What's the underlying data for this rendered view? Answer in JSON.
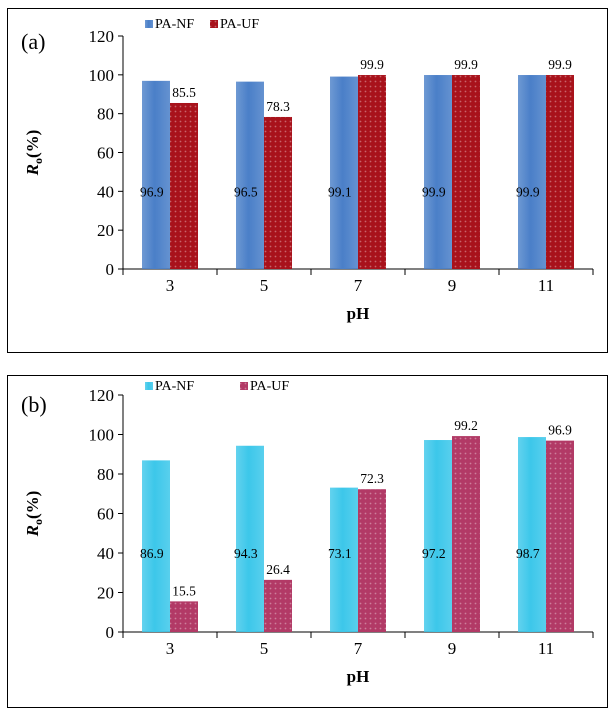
{
  "chart_data": [
    {
      "type": "bar",
      "panel_label": "(a)",
      "xlabel": "pH",
      "ylabel": "R",
      "ylabel_sub": "o",
      "ylabel_suffix": "(%)",
      "ylim": [
        0,
        120
      ],
      "yticks": [
        "0",
        "20",
        "40",
        "60",
        "80",
        "100",
        "120"
      ],
      "categories": [
        "3",
        "5",
        "7",
        "9",
        "11"
      ],
      "legend_position": "top-left",
      "series": [
        {
          "name": "PA-NF",
          "values": [
            96.9,
            96.5,
            99.1,
            99.9,
            99.9
          ],
          "labels": [
            "96.9",
            "96.5",
            "99.1",
            "99.9",
            "99.9"
          ],
          "color": "#4a7fc8",
          "label_position": "inside"
        },
        {
          "name": "PA-UF",
          "values": [
            85.5,
            78.3,
            99.9,
            99.9,
            99.9
          ],
          "labels": [
            "85.5",
            "78.3",
            "99.9",
            "99.9",
            "99.9"
          ],
          "color": "#a8121b",
          "label_position": "above"
        }
      ]
    },
    {
      "type": "bar",
      "panel_label": "(b)",
      "xlabel": "pH",
      "ylabel": "R",
      "ylabel_sub": "o",
      "ylabel_suffix": "(%)",
      "ylim": [
        0,
        120
      ],
      "yticks": [
        "0",
        "20",
        "40",
        "60",
        "80",
        "100",
        "120"
      ],
      "categories": [
        "3",
        "5",
        "7",
        "9",
        "11"
      ],
      "legend_position": "top-left",
      "series": [
        {
          "name": "PA-NF",
          "values": [
            86.9,
            94.3,
            73.1,
            97.2,
            98.7
          ],
          "labels": [
            "86.9",
            "94.3",
            "73.1",
            "97.2",
            "98.7"
          ],
          "color": "#3cc7ea",
          "label_position": "inside"
        },
        {
          "name": "PA-UF",
          "values": [
            15.5,
            26.4,
            72.3,
            99.2,
            96.9
          ],
          "labels": [
            "15.5",
            "26.4",
            "72.3",
            "99.2",
            "96.9"
          ],
          "color": "#b23a66",
          "label_position": "above"
        }
      ]
    }
  ]
}
